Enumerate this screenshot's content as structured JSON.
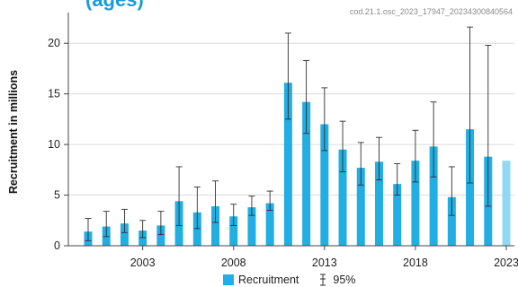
{
  "header": {
    "title": "(ages)",
    "source_id": "cod.21.1.osc_2023_17947_20234300840564"
  },
  "colors": {
    "bar": "#22aee3",
    "bar_last": "#8fd9f5",
    "error": "#2f2f2f",
    "grid": "#dcdcdc"
  },
  "chart_data": {
    "type": "bar",
    "title": "(ages)",
    "xlabel": "",
    "ylabel": "Recruitment in millions",
    "ylim": [
      0,
      22.5
    ],
    "yticks": [
      0,
      5,
      10,
      15,
      20
    ],
    "xticks": [
      2003,
      2008,
      2013,
      2018,
      2023
    ],
    "grid": true,
    "legend": "bottom-center",
    "series": [
      {
        "name": "Recruitment",
        "x": [
          2000,
          2001,
          2002,
          2003,
          2004,
          2005,
          2006,
          2007,
          2008,
          2009,
          2010,
          2011,
          2012,
          2013,
          2014,
          2015,
          2016,
          2017,
          2018,
          2019,
          2020,
          2021,
          2022,
          2023
        ],
        "values": [
          1.4,
          1.9,
          2.2,
          1.5,
          2.0,
          4.4,
          3.3,
          3.9,
          2.9,
          3.8,
          4.2,
          16.1,
          14.2,
          12.0,
          9.5,
          7.7,
          8.3,
          6.1,
          8.4,
          9.8,
          4.8,
          11.5,
          8.8,
          8.4
        ],
        "ci_low": [
          0.5,
          0.9,
          1.3,
          0.8,
          1.1,
          2.0,
          1.7,
          2.3,
          2.0,
          3.0,
          3.5,
          12.5,
          11.1,
          9.4,
          7.3,
          6.0,
          6.5,
          5.0,
          6.3,
          6.8,
          3.0,
          6.2,
          3.9,
          null
        ],
        "ci_high": [
          2.7,
          3.4,
          3.6,
          2.5,
          3.4,
          7.8,
          5.8,
          6.4,
          4.1,
          4.9,
          5.4,
          21.0,
          18.3,
          15.6,
          12.3,
          10.2,
          10.7,
          8.1,
          11.4,
          14.2,
          7.8,
          21.6,
          19.8,
          null
        ]
      }
    ],
    "legend_items": [
      {
        "label": "Recruitment"
      },
      {
        "label": "95%"
      }
    ]
  }
}
